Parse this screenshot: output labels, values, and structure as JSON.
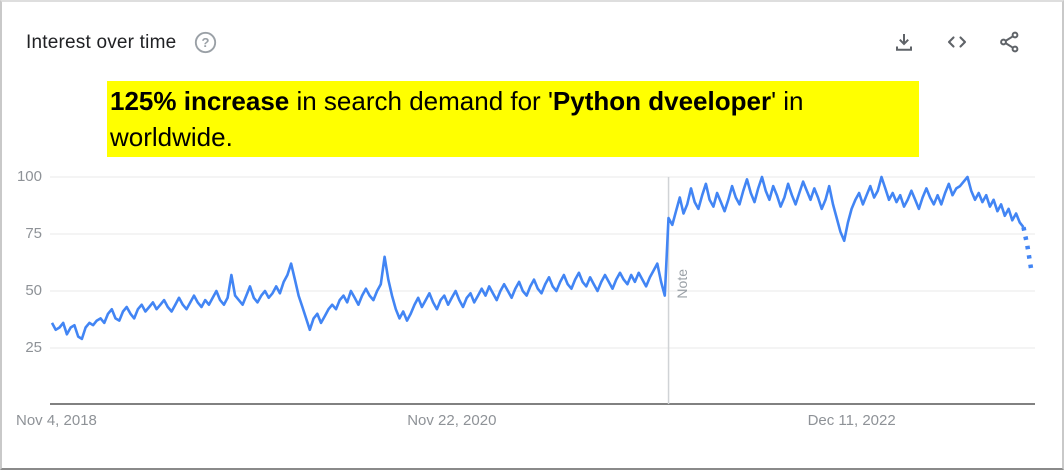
{
  "header": {
    "title": "Interest over time",
    "help_glyph": "?"
  },
  "annotation": {
    "highlight_color": "#ffff00",
    "line1_segments": [
      {
        "text": "125% increase",
        "bold": true
      },
      {
        "text": " in search demand for '",
        "bold": false
      },
      {
        "text": "Python dveeloper",
        "bold": true
      },
      {
        "text": "' in",
        "bold": false
      }
    ],
    "line2": "worldwide."
  },
  "colors": {
    "line_blue": "#4285f4",
    "grid": "#e8e8e8",
    "axis": "#6f6f6f",
    "note_line": "#d0d3d6",
    "muted_text": "#8e9297",
    "title_text": "#202124",
    "icon_gray": "#5f6368",
    "help_gray": "#9aa0a6",
    "highlight_yellow": "#ffff00"
  },
  "chart_data": {
    "type": "line",
    "title": "Interest over time",
    "xlabel": "",
    "ylabel": "",
    "grid": true,
    "ylim": [
      0,
      100
    ],
    "y_ticks": [
      100,
      75,
      50,
      25
    ],
    "x_ticks": [
      {
        "label": "Nov 4, 2018",
        "week": 0,
        "align": "left"
      },
      {
        "label": "Nov 22, 2020",
        "week": 107,
        "align": "center"
      },
      {
        "label": "Dec 11, 2022",
        "week": 214,
        "align": "center"
      }
    ],
    "note_label": "Note",
    "note_week": 165,
    "dashed_from_index": 260,
    "series": [
      {
        "name": "Python dveeloper (Worldwide)",
        "color": "#4285f4",
        "values": [
          36,
          33,
          34,
          36,
          31,
          34,
          35,
          30,
          29,
          34,
          36,
          35,
          37,
          38,
          36,
          40,
          42,
          38,
          37,
          41,
          43,
          40,
          38,
          42,
          44,
          41,
          43,
          45,
          42,
          44,
          46,
          43,
          41,
          44,
          47,
          44,
          42,
          45,
          48,
          45,
          43,
          46,
          44,
          47,
          50,
          46,
          44,
          47,
          57,
          48,
          46,
          44,
          48,
          52,
          47,
          45,
          48,
          50,
          47,
          49,
          52,
          49,
          54,
          57,
          62,
          55,
          48,
          43,
          38,
          33,
          38,
          40,
          36,
          39,
          42,
          44,
          42,
          46,
          48,
          45,
          50,
          47,
          44,
          48,
          51,
          48,
          46,
          50,
          53,
          65,
          55,
          48,
          42,
          38,
          41,
          37,
          40,
          44,
          47,
          43,
          46,
          49,
          45,
          42,
          46,
          48,
          44,
          47,
          50,
          46,
          43,
          47,
          49,
          45,
          48,
          51,
          48,
          52,
          49,
          46,
          50,
          53,
          50,
          47,
          51,
          54,
          50,
          48,
          52,
          55,
          51,
          49,
          53,
          56,
          52,
          50,
          54,
          57,
          53,
          51,
          55,
          58,
          54,
          52,
          56,
          53,
          50,
          54,
          57,
          54,
          51,
          55,
          58,
          55,
          53,
          57,
          54,
          58,
          55,
          52,
          56,
          59,
          62,
          54,
          48,
          82,
          79,
          85,
          91,
          84,
          88,
          95,
          89,
          86,
          92,
          97,
          90,
          87,
          93,
          89,
          85,
          90,
          96,
          91,
          88,
          94,
          99,
          93,
          89,
          95,
          100,
          94,
          90,
          96,
          92,
          87,
          91,
          97,
          92,
          88,
          93,
          98,
          94,
          90,
          95,
          91,
          86,
          90,
          96,
          88,
          82,
          76,
          72,
          80,
          86,
          90,
          93,
          88,
          92,
          96,
          91,
          94,
          100,
          95,
          90,
          93,
          89,
          92,
          87,
          90,
          94,
          90,
          86,
          91,
          95,
          91,
          88,
          92,
          88,
          93,
          97,
          92,
          95,
          96,
          98,
          100,
          94,
          90,
          93,
          89,
          92,
          87,
          90,
          85,
          88,
          83,
          86,
          81,
          84,
          80,
          78,
          70,
          60
        ]
      }
    ]
  }
}
